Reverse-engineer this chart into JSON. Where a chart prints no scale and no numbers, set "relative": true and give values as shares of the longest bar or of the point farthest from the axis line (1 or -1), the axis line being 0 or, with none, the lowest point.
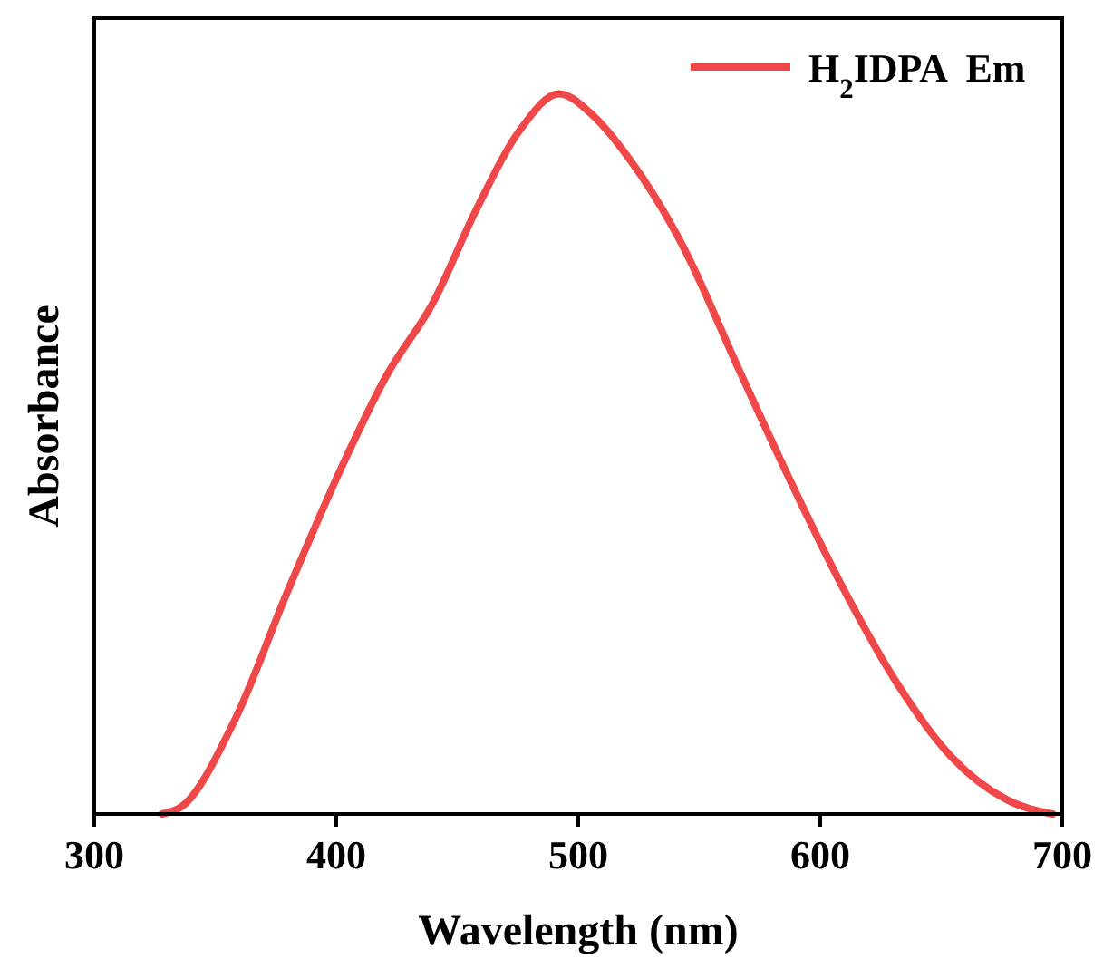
{
  "chart_data": {
    "type": "line",
    "xlabel": "Wavelength (nm)",
    "ylabel": "Absorbance",
    "relative": true,
    "xlim": [
      300,
      700
    ],
    "xticks": [
      300,
      400,
      500,
      600,
      700
    ],
    "legend": "top right",
    "grid": false,
    "x": [
      328,
      336,
      358,
      380,
      402,
      421,
      440,
      458,
      476,
      492,
      506,
      521,
      543,
      566,
      588,
      610,
      632,
      654,
      677,
      696
    ],
    "series": [
      {
        "name": "H$_{2}$IDPA  Em",
        "color": "#f04848",
        "values": [
          0,
          0.01,
          0.13,
          0.31,
          0.48,
          0.61,
          0.71,
          0.84,
          0.95,
          1,
          0.97,
          0.91,
          0.79,
          0.62,
          0.46,
          0.31,
          0.18,
          0.08,
          0.02,
          0
        ]
      }
    ]
  }
}
